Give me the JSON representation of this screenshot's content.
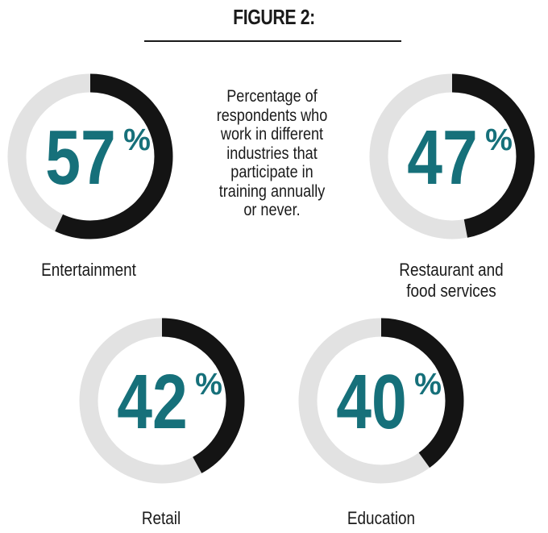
{
  "figure": {
    "title": "FIGURE 2:",
    "description": "Percentage of respondents who work in different industries that participate in training annually or never."
  },
  "colors": {
    "ring_track": "#e2e2e2",
    "ring_value": "#141414",
    "number": "#16707a"
  },
  "chart_data": {
    "type": "pie",
    "title": "FIGURE 2:",
    "subtitle": "Percentage of respondents who work in different industries that participate in training annually or never.",
    "unit": "%",
    "items": [
      {
        "label": "Entertainment",
        "value": 57,
        "display": "57"
      },
      {
        "label": "Restaurant and food services",
        "value": 47,
        "display": "47"
      },
      {
        "label": "Retail",
        "value": 42,
        "display": "42"
      },
      {
        "label": "Education",
        "value": 40,
        "display": "40"
      }
    ]
  }
}
